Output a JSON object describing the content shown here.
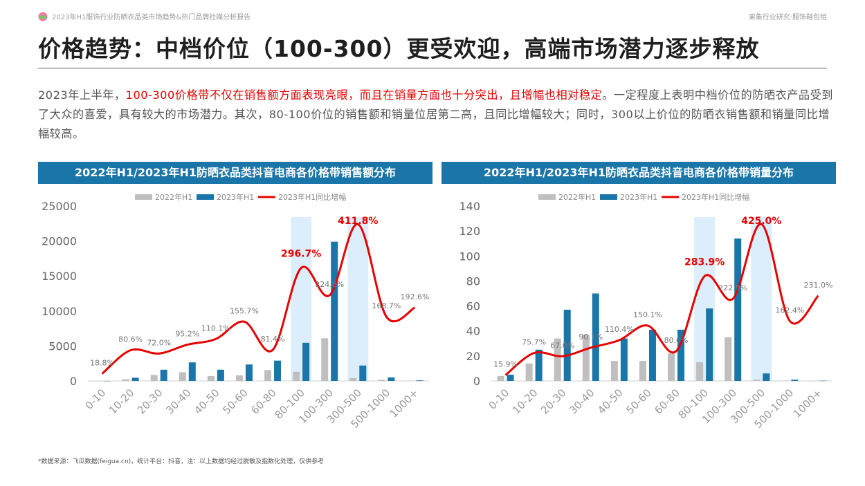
{
  "header": {
    "report_title": "2023年H1服饰行业防晒衣品类市场趋势&热门品牌社媒分析报告",
    "org": "果集行业研究·服饰鞋包组"
  },
  "slide": {
    "title": "价格趋势：中档价位（100-300）更受欢迎，高端市场潜力逐步释放",
    "paragraph": {
      "pre": "2023年上半年，",
      "highlight": "100-300价格带不仅在销售额方面表现亮眼，而且在销量方面也十分突出，且增幅也相对稳定",
      "post": "。一定程度上表明中档价位的防晒衣产品受到了大众的喜爱，具有较大的市场潜力。其次，80-100价位的销售额和销量位居第二高，且同比增幅较大；同时，300以上价位的防晒衣销售额和销量同比增幅较高。"
    },
    "footnote": "*数据来源：飞瓜数据(feigua.cn)，统计平台：抖音，注：以上数据均经过脱敏及指数化处理，仅供参考"
  },
  "colors": {
    "series_2022": "#bfbfbf",
    "series_2023": "#1a75a8",
    "growth": "#e60000",
    "highlight_band": "#dceefb",
    "header_bg": "#1a75a8"
  },
  "chart_data": [
    {
      "type": "bar",
      "title": "2022年H1/2023年H1防晒衣品类抖音电商各价格带销售额分布",
      "categories": [
        "0-10",
        "10-20",
        "20-30",
        "30-40",
        "40-50",
        "50-60",
        "60-80",
        "80-100",
        "100-300",
        "300-500",
        "500-1000",
        "1000+"
      ],
      "ylim": [
        0,
        25000
      ],
      "yticks": [
        0,
        5000,
        10000,
        15000,
        20000,
        25000
      ],
      "highlight_categories": [
        "80-100",
        "300-500"
      ],
      "legend_position": "top",
      "series": [
        {
          "name": "2022年H1",
          "kind": "bar",
          "values": [
            0,
            250,
            850,
            1250,
            700,
            800,
            1550,
            1300,
            6100,
            400,
            150,
            50
          ]
        },
        {
          "name": "2023年H1",
          "kind": "bar",
          "values": [
            0,
            450,
            1600,
            2650,
            1600,
            2350,
            2900,
            5450,
            19900,
            2200,
            500,
            80
          ]
        },
        {
          "name": "2023年H1同比增幅",
          "kind": "line",
          "axis": "secondary",
          "values": [
            18.8,
            80.6,
            72.0,
            95.2,
            110.1,
            155.7,
            81.4,
            296.7,
            224.8,
            411.8,
            168.7,
            192.6
          ],
          "labels": [
            "18.8%",
            "80.6%",
            "72.0%",
            "95.2%",
            "110.1%",
            "155.7%",
            "81.4%",
            "296.7%",
            "224.8%",
            "411.8%",
            "168.7%",
            "192.6%"
          ],
          "emphasized_labels": [
            "296.7%",
            "411.8%"
          ]
        }
      ]
    },
    {
      "type": "bar",
      "title": "2022年H1/2023年H1防晒衣品类抖音电商各价格带销量分布",
      "categories": [
        "0-10",
        "10-20",
        "20-30",
        "30-40",
        "40-50",
        "50-60",
        "60-80",
        "80-100",
        "100-300",
        "300-500",
        "500-1000",
        "1000+"
      ],
      "ylim": [
        0,
        140
      ],
      "yticks": [
        0,
        20,
        40,
        60,
        80,
        100,
        120,
        140
      ],
      "highlight_categories": [
        "80-100",
        "300-500"
      ],
      "legend_position": "top",
      "series": [
        {
          "name": "2022年H1",
          "kind": "bar",
          "values": [
            4,
            14,
            34,
            37,
            16,
            16,
            22,
            15,
            35,
            1,
            0.3,
            0.1
          ]
        },
        {
          "name": "2023年H1",
          "kind": "bar",
          "values": [
            5,
            25,
            57,
            70,
            34,
            41,
            41,
            58,
            114,
            6,
            1,
            0.2
          ]
        },
        {
          "name": "2023年H1同比增幅",
          "kind": "line",
          "axis": "secondary",
          "values": [
            15.9,
            75.7,
            67.0,
            90.1,
            110.4,
            150.1,
            80.6,
            283.9,
            222.9,
            425.0,
            162.4,
            231.0
          ],
          "labels": [
            "15.9%",
            "75.7%",
            "67.0%",
            "90.1%",
            "110.4%",
            "150.1%",
            "80.6%",
            "283.9%",
            "222.9%",
            "425.0%",
            "162.4%",
            "231.0%"
          ],
          "emphasized_labels": [
            "283.9%",
            "425.0%"
          ]
        }
      ]
    }
  ]
}
